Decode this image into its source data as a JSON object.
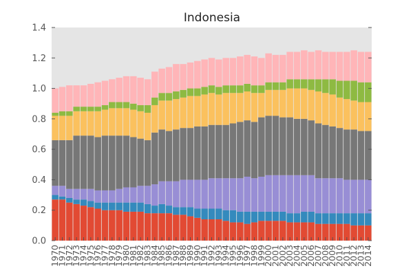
{
  "chart_data": {
    "type": "bar",
    "stacked": true,
    "title": "Indonesia",
    "xlabel": "",
    "ylabel": "",
    "ylim": [
      0,
      1.4
    ],
    "yticks": [
      "0.0",
      "0.2",
      "0.4",
      "0.6",
      "0.8",
      "1.0",
      "1.2",
      "1.4"
    ],
    "grid": false,
    "background": "#e5e5e5",
    "categories": [
      "1970",
      "1971",
      "1972",
      "1973",
      "1974",
      "1975",
      "1976",
      "1977",
      "1978",
      "1979",
      "1980",
      "1981",
      "1982",
      "1983",
      "1984",
      "1985",
      "1986",
      "1987",
      "1988",
      "1989",
      "1990",
      "1991",
      "1992",
      "1993",
      "1994",
      "1995",
      "1996",
      "1997",
      "1998",
      "1999",
      "2000",
      "2001",
      "2002",
      "2003",
      "2004",
      "2005",
      "2006",
      "2007",
      "2008",
      "2009",
      "2010",
      "2011",
      "2012",
      "2013",
      "2014"
    ],
    "series": [
      {
        "color": "#e24a33",
        "values": [
          0.27,
          0.27,
          0.25,
          0.24,
          0.23,
          0.22,
          0.21,
          0.2,
          0.2,
          0.2,
          0.19,
          0.19,
          0.19,
          0.18,
          0.18,
          0.18,
          0.18,
          0.17,
          0.17,
          0.16,
          0.15,
          0.14,
          0.14,
          0.14,
          0.13,
          0.12,
          0.12,
          0.11,
          0.12,
          0.13,
          0.13,
          0.13,
          0.13,
          0.12,
          0.12,
          0.12,
          0.12,
          0.11,
          0.11,
          0.11,
          0.11,
          0.11,
          0.1,
          0.1,
          0.1
        ]
      },
      {
        "color": "#348abd",
        "values": [
          0.03,
          0.02,
          0.03,
          0.03,
          0.04,
          0.04,
          0.04,
          0.05,
          0.05,
          0.05,
          0.06,
          0.06,
          0.06,
          0.06,
          0.05,
          0.06,
          0.05,
          0.05,
          0.05,
          0.06,
          0.06,
          0.07,
          0.07,
          0.07,
          0.07,
          0.08,
          0.07,
          0.08,
          0.07,
          0.06,
          0.06,
          0.06,
          0.06,
          0.06,
          0.06,
          0.07,
          0.07,
          0.07,
          0.07,
          0.07,
          0.07,
          0.07,
          0.08,
          0.08,
          0.08
        ]
      },
      {
        "color": "#988ed5",
        "values": [
          0.06,
          0.07,
          0.06,
          0.07,
          0.07,
          0.08,
          0.08,
          0.08,
          0.08,
          0.09,
          0.1,
          0.1,
          0.11,
          0.12,
          0.14,
          0.15,
          0.16,
          0.17,
          0.18,
          0.18,
          0.19,
          0.19,
          0.2,
          0.2,
          0.21,
          0.21,
          0.22,
          0.23,
          0.22,
          0.23,
          0.24,
          0.24,
          0.24,
          0.25,
          0.25,
          0.24,
          0.24,
          0.23,
          0.23,
          0.23,
          0.23,
          0.22,
          0.22,
          0.22,
          0.22
        ]
      },
      {
        "color": "#777777",
        "values": [
          0.3,
          0.3,
          0.32,
          0.35,
          0.35,
          0.35,
          0.35,
          0.36,
          0.36,
          0.35,
          0.34,
          0.33,
          0.31,
          0.3,
          0.34,
          0.34,
          0.33,
          0.34,
          0.34,
          0.34,
          0.35,
          0.35,
          0.35,
          0.35,
          0.35,
          0.36,
          0.37,
          0.37,
          0.37,
          0.39,
          0.39,
          0.39,
          0.38,
          0.38,
          0.37,
          0.37,
          0.36,
          0.36,
          0.35,
          0.34,
          0.33,
          0.33,
          0.33,
          0.32,
          0.32
        ]
      },
      {
        "color": "#fbc15e",
        "values": [
          0.16,
          0.16,
          0.16,
          0.16,
          0.16,
          0.16,
          0.17,
          0.17,
          0.18,
          0.18,
          0.18,
          0.18,
          0.18,
          0.18,
          0.18,
          0.19,
          0.2,
          0.2,
          0.2,
          0.21,
          0.2,
          0.21,
          0.21,
          0.2,
          0.21,
          0.2,
          0.19,
          0.19,
          0.19,
          0.16,
          0.17,
          0.17,
          0.18,
          0.19,
          0.2,
          0.2,
          0.2,
          0.21,
          0.21,
          0.21,
          0.2,
          0.2,
          0.19,
          0.19,
          0.19
        ]
      },
      {
        "color": "#8eba42",
        "values": [
          0.02,
          0.03,
          0.03,
          0.03,
          0.03,
          0.03,
          0.03,
          0.03,
          0.04,
          0.04,
          0.04,
          0.04,
          0.04,
          0.05,
          0.05,
          0.05,
          0.05,
          0.05,
          0.05,
          0.05,
          0.05,
          0.05,
          0.05,
          0.05,
          0.05,
          0.05,
          0.05,
          0.05,
          0.05,
          0.05,
          0.05,
          0.05,
          0.05,
          0.06,
          0.06,
          0.06,
          0.07,
          0.08,
          0.09,
          0.1,
          0.11,
          0.12,
          0.13,
          0.13,
          0.13
        ]
      },
      {
        "color": "#ffb5b8",
        "values": [
          0.16,
          0.16,
          0.17,
          0.14,
          0.14,
          0.15,
          0.16,
          0.16,
          0.15,
          0.16,
          0.17,
          0.18,
          0.18,
          0.17,
          0.17,
          0.16,
          0.17,
          0.18,
          0.17,
          0.17,
          0.18,
          0.18,
          0.18,
          0.18,
          0.18,
          0.18,
          0.19,
          0.19,
          0.19,
          0.18,
          0.19,
          0.18,
          0.18,
          0.18,
          0.18,
          0.19,
          0.18,
          0.19,
          0.18,
          0.18,
          0.19,
          0.19,
          0.2,
          0.2,
          0.2
        ]
      }
    ]
  }
}
